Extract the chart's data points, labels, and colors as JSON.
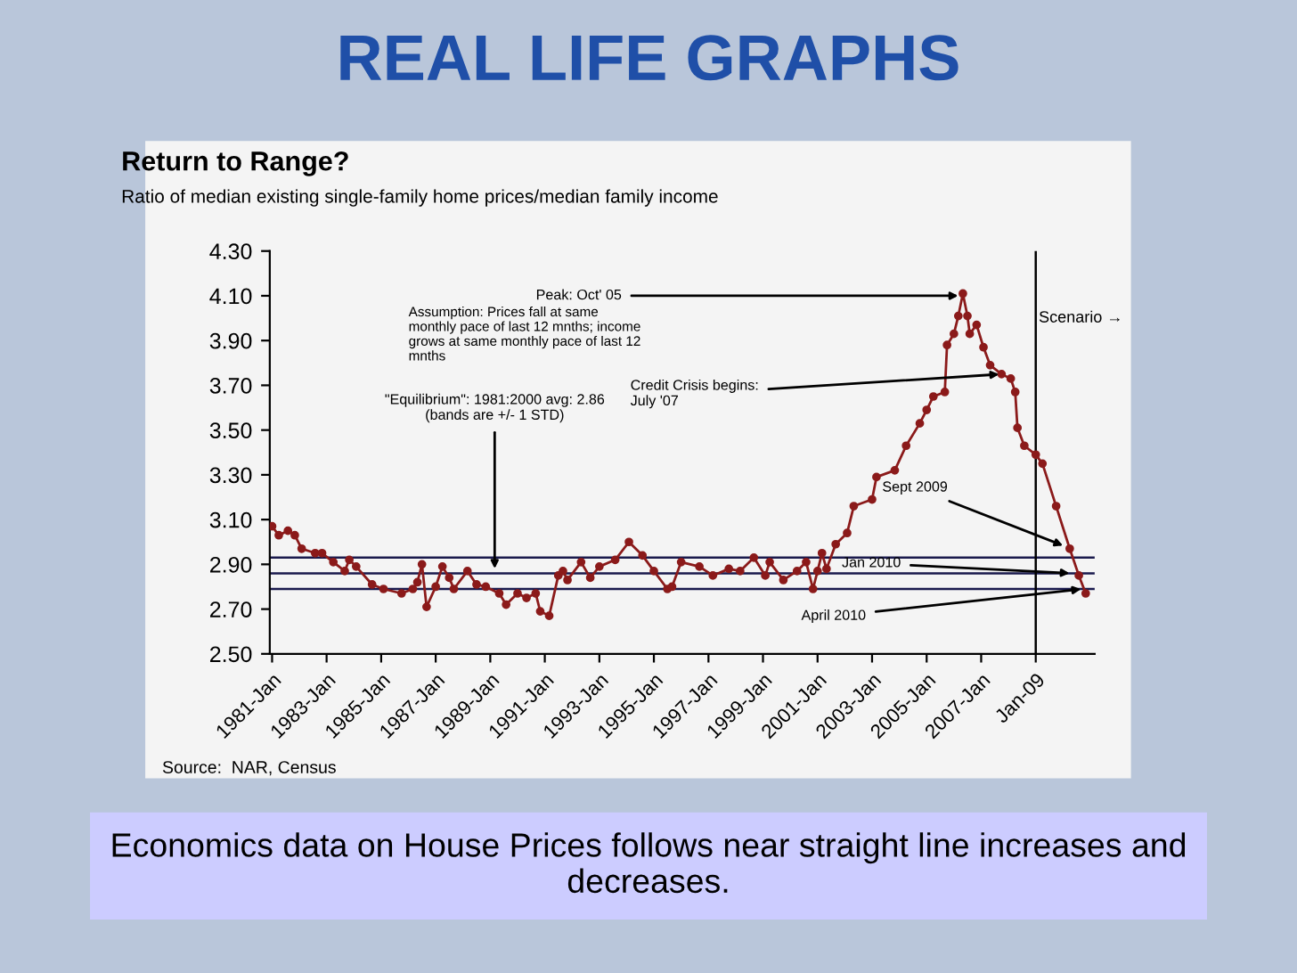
{
  "chart_data": {
    "type": "line",
    "title": "Return to Range?",
    "subtitle": "Ratio of median existing single-family home prices/median family income",
    "x": [
      "1981-01",
      "1981-04",
      "1981-08",
      "1981-11",
      "1982-02",
      "1982-08",
      "1982-11",
      "1983-04",
      "1983-09",
      "1983-11",
      "1984-02",
      "1984-09",
      "1985-02",
      "1985-10",
      "1986-03",
      "1986-05",
      "1986-07",
      "1986-09",
      "1987-01",
      "1987-04",
      "1987-07",
      "1987-09",
      "1988-03",
      "1988-07",
      "1988-11",
      "1989-05",
      "1989-08",
      "1990-01",
      "1990-05",
      "1990-09",
      "1990-11",
      "1991-03",
      "1991-07",
      "1991-09",
      "1991-11",
      "1992-05",
      "1992-09",
      "1993-01",
      "1993-08",
      "1994-02",
      "1994-08",
      "1995-01",
      "1995-07",
      "1995-09",
      "1996-01",
      "1996-09",
      "1997-03",
      "1997-10",
      "1998-03",
      "1998-09",
      "1999-02",
      "1999-04",
      "1999-10",
      "2000-04",
      "2000-08",
      "2000-11",
      "2001-01",
      "2001-03",
      "2001-05",
      "2001-09",
      "2002-02",
      "2002-05",
      "2003-01",
      "2003-03",
      "2003-11",
      "2004-04",
      "2004-10",
      "2005-01",
      "2005-04",
      "2005-09",
      "2005-10",
      "2006-01",
      "2006-03",
      "2006-05",
      "2006-07",
      "2006-08",
      "2006-11",
      "2007-02",
      "2007-05",
      "2007-10",
      "2008-02",
      "2008-04",
      "2008-05",
      "2008-08",
      "2009-01",
      "2009-04",
      "2009-10",
      "2010-04",
      "2010-08",
      "2010-11"
    ],
    "series": [
      {
        "color": "#8b1a1a",
        "values": [
          3.07,
          3.03,
          3.05,
          3.03,
          2.97,
          2.95,
          2.95,
          2.91,
          2.87,
          2.92,
          2.89,
          2.81,
          2.79,
          2.77,
          2.79,
          2.82,
          2.9,
          2.71,
          2.8,
          2.89,
          2.84,
          2.79,
          2.87,
          2.81,
          2.8,
          2.77,
          2.72,
          2.77,
          2.75,
          2.77,
          2.69,
          2.67,
          2.85,
          2.87,
          2.83,
          2.91,
          2.84,
          2.89,
          2.92,
          3.0,
          2.94,
          2.87,
          2.79,
          2.8,
          2.91,
          2.89,
          2.85,
          2.88,
          2.87,
          2.93,
          2.85,
          2.91,
          2.83,
          2.87,
          2.91,
          2.79,
          2.87,
          2.95,
          2.88,
          2.99,
          3.04,
          3.16,
          3.19,
          3.29,
          3.32,
          3.43,
          3.53,
          3.59,
          3.65,
          3.67,
          3.88,
          3.93,
          4.01,
          4.11,
          4.01,
          3.93,
          3.97,
          3.87,
          3.79,
          3.75,
          3.73,
          3.67,
          3.51,
          3.43,
          3.39,
          3.35,
          3.16,
          2.97,
          2.85,
          2.77
        ]
      }
    ],
    "xlim": [
      "1980-12",
      "2011-03"
    ],
    "xticks": [
      {
        "value": "1981-01",
        "label": "1981-Jan"
      },
      {
        "value": "1983-01",
        "label": "1983-Jan"
      },
      {
        "value": "1985-01",
        "label": "1985-Jan"
      },
      {
        "value": "1987-01",
        "label": "1987-Jan"
      },
      {
        "value": "1989-01",
        "label": "1989-Jan"
      },
      {
        "value": "1991-01",
        "label": "1991-Jan"
      },
      {
        "value": "1993-01",
        "label": "1993-Jan"
      },
      {
        "value": "1995-01",
        "label": "1995-Jan"
      },
      {
        "value": "1997-01",
        "label": "1997-Jan"
      },
      {
        "value": "1999-01",
        "label": "1999-Jan"
      },
      {
        "value": "2001-01",
        "label": "2001-Jan"
      },
      {
        "value": "2003-01",
        "label": "2003-Jan"
      },
      {
        "value": "2005-01",
        "label": "2005-Jan"
      },
      {
        "value": "2007-01",
        "label": "2007-Jan"
      },
      {
        "value": "2009-01",
        "label": "Jan-09"
      }
    ],
    "ylim": [
      2.5,
      4.3
    ],
    "yticks": [
      {
        "value": 2.5,
        "label": "2.50"
      },
      {
        "value": 2.7,
        "label": "2.70"
      },
      {
        "value": 2.9,
        "label": "2.90"
      },
      {
        "value": 3.1,
        "label": "3.10"
      },
      {
        "value": 3.3,
        "label": "3.30"
      },
      {
        "value": 3.5,
        "label": "3.50"
      },
      {
        "value": 3.7,
        "label": "3.70"
      },
      {
        "value": 3.9,
        "label": "3.90"
      },
      {
        "value": 4.1,
        "label": "4.10"
      },
      {
        "value": 4.3,
        "label": "4.30"
      }
    ],
    "marker": "circle",
    "line_style": "solid",
    "grid": false,
    "ref_lines": [
      {
        "axis": "y",
        "value": 2.93,
        "color": "#1a1a4d"
      },
      {
        "axis": "y",
        "value": 2.86,
        "color": "#1a1a4d"
      },
      {
        "axis": "y",
        "value": 2.79,
        "color": "#1a1a4d"
      },
      {
        "axis": "x",
        "value": "2009-01",
        "label": "Scenario →",
        "color": "#000000"
      }
    ],
    "annotations": [
      "REAL LIFE GRAPHS",
      "Assumption: Prices fall at same monthly pace of last 12 mnths; income grows at same monthly pace of last 12 mnths",
      {
        "text": "\"Equilibrium\": 1981:2000 avg: 2.86\n(bands are +/- 1 STD)",
        "x": "1989-03",
        "y": 2.87
      },
      {
        "text": "Peak: Oct' 05",
        "x": "2006-04",
        "y": 4.1
      },
      {
        "text": "Credit Crisis begins:\nJuly '07",
        "x": "2007-10",
        "y": 3.75
      },
      {
        "text": "Sept 2009",
        "x": "2010-02",
        "y": 2.98
      },
      {
        "text": "Jan 2010",
        "x": "2010-05",
        "y": 2.86
      },
      {
        "text": "April 2010",
        "x": "2010-10",
        "y": 2.79
      },
      "Source:  NAR, Census",
      "Economics data on House Prices follows near straight line increases and decreases."
    ]
  }
}
